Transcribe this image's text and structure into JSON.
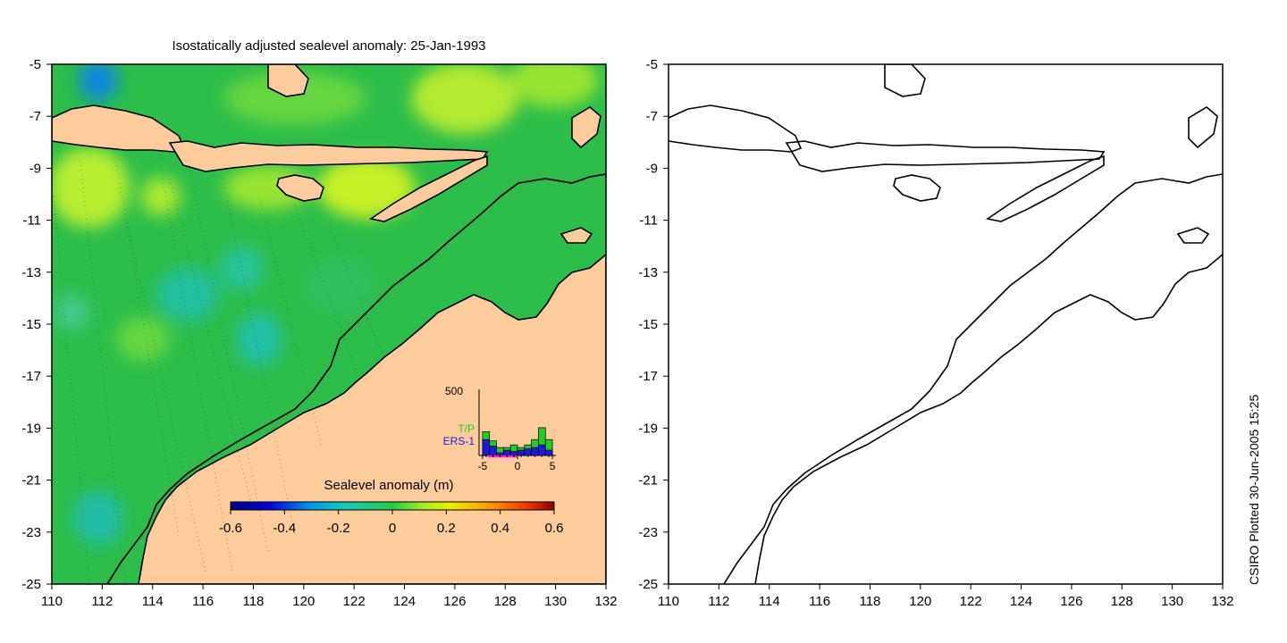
{
  "left_map": {
    "title": "Isostatically adjusted sealevel anomaly: 25-Jan-1993",
    "x_ticks": [
      "110",
      "112",
      "114",
      "116",
      "118",
      "120",
      "122",
      "124",
      "126",
      "128",
      "130",
      "132"
    ],
    "y_ticks": [
      "-5",
      "-7",
      "-9",
      "-11",
      "-13",
      "-15",
      "-17",
      "-19",
      "-21",
      "-23",
      "-25"
    ],
    "colorbar": {
      "title": "Sealevel anomaly (m)",
      "ticks": [
        "-0.6",
        "-0.4",
        "-0.2",
        "0",
        "0.2",
        "0.4",
        "0.6"
      ],
      "range": [
        -0.6,
        0.6
      ]
    },
    "histogram": {
      "y_max_label": "500",
      "x_ticks": [
        "-5",
        "0",
        "5"
      ],
      "legend": [
        "T/P",
        "ERS-1"
      ],
      "legend_colors": [
        "#22cc22",
        "#1a1adc"
      ],
      "bins": [
        -4.5,
        -3.5,
        -2.5,
        -1.5,
        -0.5,
        0.5,
        1.5,
        2.5,
        3.5,
        4.5
      ],
      "tp_counts": [
        180,
        110,
        60,
        60,
        80,
        60,
        80,
        120,
        210,
        120
      ],
      "ers1_counts": [
        120,
        70,
        20,
        40,
        30,
        40,
        50,
        60,
        80,
        40
      ]
    }
  },
  "right_map": {
    "x_ticks": [
      "110",
      "112",
      "114",
      "116",
      "118",
      "120",
      "122",
      "124",
      "126",
      "128",
      "130",
      "132"
    ],
    "y_ticks": [
      "-5",
      "-7",
      "-9",
      "-11",
      "-13",
      "-15",
      "-17",
      "-19",
      "-21",
      "-23",
      "-25"
    ]
  },
  "credit": "CSIRO Plotted 30-Jun-2005 15:25",
  "colors": {
    "land": "#fccc9c",
    "ocean_base": "#22bb44",
    "coast": "#000000"
  }
}
